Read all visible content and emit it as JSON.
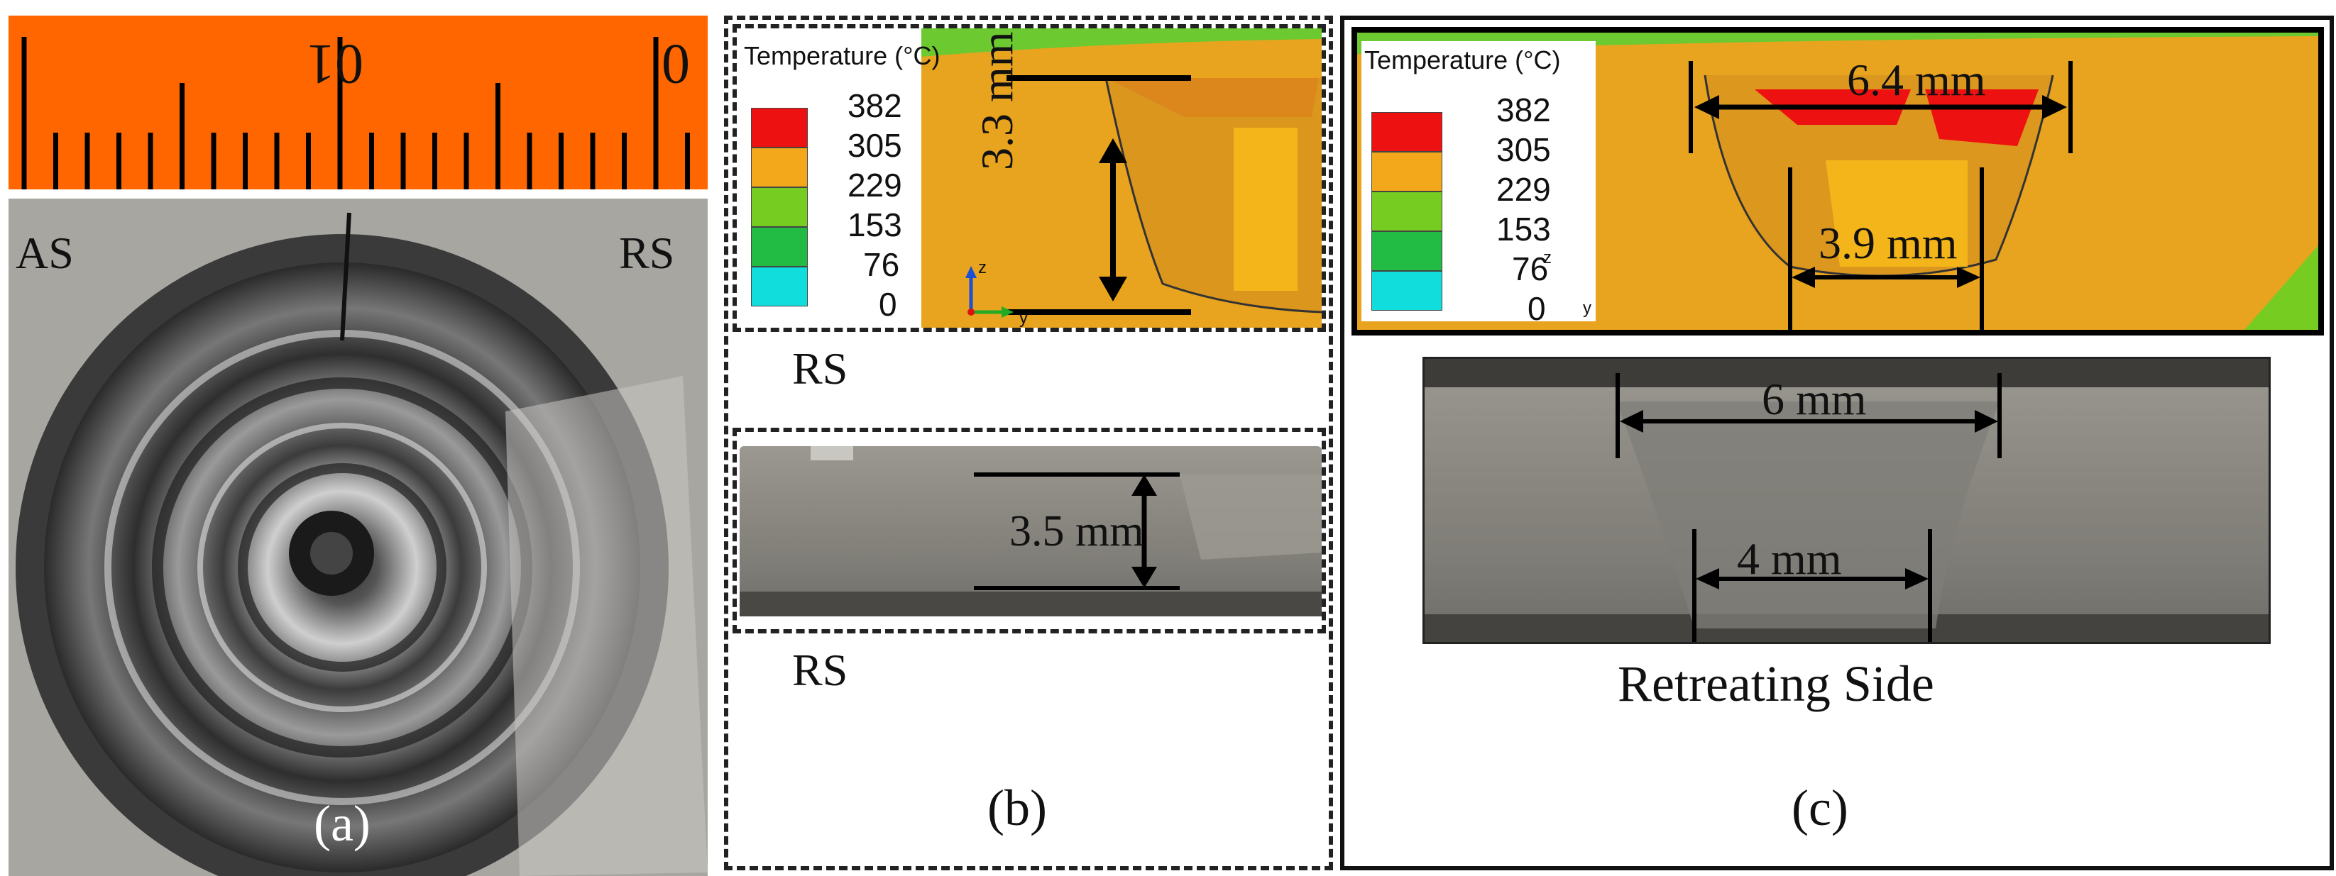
{
  "panel_a": {
    "ruler_label_left": "01",
    "ruler_label_right": "0",
    "side_left": "AS",
    "side_right": "RS",
    "caption": "(a)",
    "colors": {
      "ruler": "#ff6600",
      "metal": "#8c8a84"
    }
  },
  "panel_b": {
    "legend": {
      "title": "Temperature (°C)",
      "values": [
        "382",
        "305",
        "229",
        "153",
        "76",
        "0"
      ],
      "colors": [
        "#ee1111",
        "#f2a81a",
        "#77cc22",
        "#22bb44",
        "#11dddd"
      ]
    },
    "depth_sim": "3.3 mm",
    "depth_exp": "3.5 mm",
    "rs_label_1": "RS",
    "rs_label_2": "RS",
    "caption": "(b)",
    "axis_z": "z",
    "axis_y": "y"
  },
  "panel_c": {
    "legend": {
      "title": "Temperature (°C)",
      "values": [
        "382",
        "305",
        "229",
        "153",
        "76",
        "0"
      ],
      "colors": [
        "#ee1111",
        "#f2a81a",
        "#77cc22",
        "#22bb44",
        "#11dddd"
      ]
    },
    "top_width_sim": "6.4 mm",
    "bottom_width_sim": "3.9 mm",
    "top_width_exp": "6 mm",
    "bottom_width_exp": "4 mm",
    "side_label": "Retreating Side",
    "caption": "(c)",
    "axis_z": "z",
    "axis_y": "y"
  }
}
